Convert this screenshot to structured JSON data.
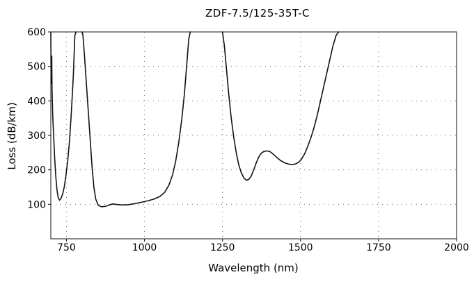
{
  "chart_data": {
    "type": "line",
    "title": "ZDF-7.5/125-35T-C",
    "xlabel": "Wavelength (nm)",
    "ylabel": "Loss (dB/km)",
    "xlim": [
      700,
      2000
    ],
    "ylim": [
      0,
      600
    ],
    "x_ticks": [
      750,
      1000,
      1250,
      1500,
      1750,
      2000
    ],
    "y_ticks": [
      100,
      200,
      300,
      400,
      500,
      600
    ],
    "grid": true,
    "grid_style": "dotted",
    "line_color": "#111111",
    "series": [
      {
        "values": [
          [
            700,
            600
          ],
          [
            701,
            450
          ],
          [
            703,
            530
          ],
          [
            704,
            430
          ],
          [
            706,
            360
          ],
          [
            709,
            300
          ],
          [
            712,
            240
          ],
          [
            716,
            180
          ],
          [
            720,
            140
          ],
          [
            724,
            118
          ],
          [
            728,
            112
          ],
          [
            733,
            118
          ],
          [
            738,
            130
          ],
          [
            743,
            150
          ],
          [
            748,
            180
          ],
          [
            754,
            225
          ],
          [
            760,
            285
          ],
          [
            766,
            370
          ],
          [
            772,
            470
          ],
          [
            777,
            590
          ],
          [
            781,
            600
          ]
        ]
      },
      {
        "values": [
          [
            800,
            600
          ],
          [
            803,
            590
          ],
          [
            808,
            530
          ],
          [
            814,
            450
          ],
          [
            820,
            370
          ],
          [
            826,
            290
          ],
          [
            832,
            210
          ],
          [
            838,
            150
          ],
          [
            844,
            115
          ],
          [
            852,
            97
          ],
          [
            862,
            93
          ],
          [
            875,
            94
          ],
          [
            890,
            99
          ],
          [
            900,
            101
          ],
          [
            915,
            99
          ],
          [
            930,
            98
          ],
          [
            950,
            99
          ],
          [
            970,
            102
          ],
          [
            990,
            106
          ],
          [
            1010,
            110
          ],
          [
            1030,
            115
          ],
          [
            1050,
            123
          ],
          [
            1065,
            135
          ],
          [
            1078,
            155
          ],
          [
            1090,
            185
          ],
          [
            1100,
            225
          ],
          [
            1110,
            280
          ],
          [
            1120,
            350
          ],
          [
            1128,
            420
          ],
          [
            1135,
            500
          ],
          [
            1142,
            580
          ],
          [
            1147,
            600
          ]
        ]
      },
      {
        "values": [
          [
            1250,
            600
          ],
          [
            1256,
            560
          ],
          [
            1262,
            500
          ],
          [
            1270,
            420
          ],
          [
            1278,
            350
          ],
          [
            1286,
            295
          ],
          [
            1294,
            250
          ],
          [
            1302,
            215
          ],
          [
            1310,
            192
          ],
          [
            1318,
            177
          ],
          [
            1326,
            170
          ],
          [
            1334,
            172
          ],
          [
            1342,
            182
          ],
          [
            1350,
            200
          ],
          [
            1358,
            220
          ],
          [
            1366,
            237
          ],
          [
            1374,
            248
          ],
          [
            1382,
            253
          ],
          [
            1392,
            255
          ],
          [
            1402,
            253
          ],
          [
            1412,
            246
          ],
          [
            1424,
            236
          ],
          [
            1436,
            227
          ],
          [
            1448,
            221
          ],
          [
            1460,
            217
          ],
          [
            1472,
            215
          ],
          [
            1484,
            217
          ],
          [
            1494,
            222
          ],
          [
            1504,
            232
          ],
          [
            1514,
            248
          ],
          [
            1524,
            270
          ],
          [
            1534,
            295
          ],
          [
            1544,
            325
          ],
          [
            1554,
            360
          ],
          [
            1564,
            400
          ],
          [
            1574,
            440
          ],
          [
            1584,
            480
          ],
          [
            1594,
            520
          ],
          [
            1604,
            560
          ],
          [
            1614,
            590
          ],
          [
            1622,
            600
          ]
        ]
      }
    ]
  }
}
